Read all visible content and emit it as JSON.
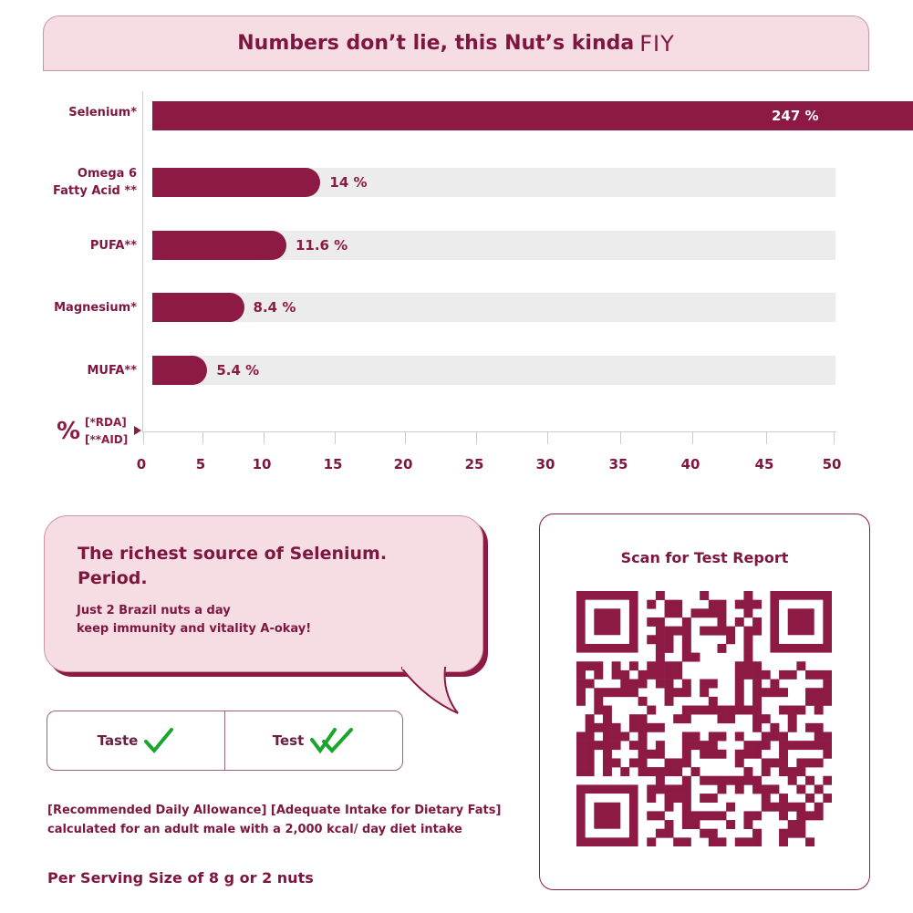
{
  "header": {
    "title": "Numbers don’t lie, this Nut’s kinda",
    "title_accent": "FIY"
  },
  "chart_data": {
    "type": "bar",
    "orientation": "horizontal",
    "categories": [
      "Selenium*",
      "Omega 6 Fatty Acid**",
      "PUFA**",
      "Magnesium*",
      "MUFA**"
    ],
    "category_lines": [
      [
        "Selenium*"
      ],
      [
        "Omega 6",
        "Fatty Acid **"
      ],
      [
        "PUFA**"
      ],
      [
        "Magnesium*"
      ],
      [
        "MUFA**"
      ]
    ],
    "values": [
      247,
      14,
      11.6,
      8.4,
      5.4
    ],
    "data_labels": [
      "247 %",
      "14 %",
      "11.6 %",
      "8.4 %",
      "5.4 %"
    ],
    "xlim": [
      0,
      50
    ],
    "xticks": [
      "0",
      "5",
      "10",
      "15",
      "20",
      "25",
      "30",
      "35",
      "40",
      "45",
      "50"
    ],
    "xlabel": "%",
    "xlabel_notes": [
      "[*RDA]",
      "[**AID]"
    ],
    "grid": false,
    "colors": {
      "bar": "#8c1a45",
      "track": "#ececec"
    }
  },
  "bubble": {
    "headline": [
      "The richest source of Selenium.",
      "Period."
    ],
    "body": [
      "Just 2 Brazil nuts a day",
      "keep immunity and vitality A-okay!"
    ]
  },
  "checks": [
    {
      "label": "Taste",
      "icon": "check-icon"
    },
    {
      "label": "Test",
      "icon": "double-check-icon"
    }
  ],
  "footnote": [
    "[Recommended Daily Allowance] [Adequate Intake for Dietary Fats]",
    "calculated for an adult male with a 2,000 kcal/ day diet intake"
  ],
  "serving": "Per Serving Size of 8 g or 2 nuts",
  "qr": {
    "title": "Scan for Test Report",
    "color": "#8c1a45"
  },
  "colors": {
    "brand": "#8c1a45",
    "panel": "#f6dde3",
    "check": "#1aa52c"
  }
}
